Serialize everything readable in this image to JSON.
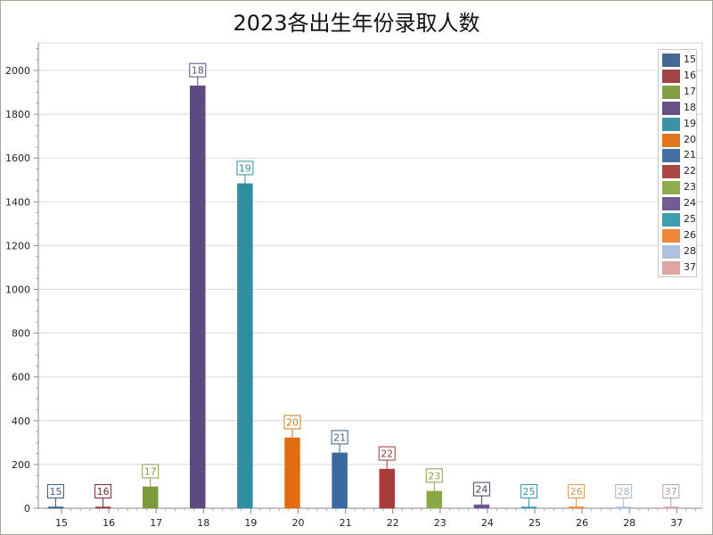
{
  "chart_data": {
    "type": "bar",
    "title": "2023各出生年份录取人数",
    "xlabel": "",
    "ylabel": "",
    "ylim": [
      0,
      2150
    ],
    "yticks": [
      0,
      200,
      400,
      600,
      800,
      1000,
      1200,
      1400,
      1600,
      1800,
      2000
    ],
    "grid": true,
    "legend_position": "right-top",
    "categories": [
      "15",
      "16",
      "17",
      "18",
      "19",
      "20",
      "21",
      "22",
      "23",
      "24",
      "25",
      "26",
      "28",
      "37"
    ],
    "values": [
      5,
      4,
      98,
      1930,
      1483,
      322,
      253,
      179,
      78,
      16,
      2,
      1,
      1,
      1
    ],
    "series": [
      {
        "name": "15",
        "values": [
          5
        ],
        "color": "#3a5f8f"
      },
      {
        "name": "16",
        "values": [
          4
        ],
        "color": "#9b3a3a"
      },
      {
        "name": "17",
        "values": [
          98
        ],
        "color": "#7b9a3a"
      },
      {
        "name": "18",
        "values": [
          1930
        ],
        "color": "#5e4a7e"
      },
      {
        "name": "19",
        "values": [
          1483
        ],
        "color": "#2f8ea0"
      },
      {
        "name": "20",
        "values": [
          322
        ],
        "color": "#e06e10"
      },
      {
        "name": "21",
        "values": [
          253
        ],
        "color": "#3b68a0"
      },
      {
        "name": "22",
        "values": [
          179
        ],
        "color": "#a83c3c"
      },
      {
        "name": "23",
        "values": [
          78
        ],
        "color": "#8aa844"
      },
      {
        "name": "24",
        "values": [
          16
        ],
        "color": "#6a5490"
      },
      {
        "name": "25",
        "values": [
          2
        ],
        "color": "#3499ac"
      },
      {
        "name": "26",
        "values": [
          1
        ],
        "color": "#ee8030"
      },
      {
        "name": "28",
        "values": [
          1
        ],
        "color": "#a8bfdf"
      },
      {
        "name": "37",
        "values": [
          1
        ],
        "color": "#e0a0a0"
      }
    ],
    "label_border_colors": [
      "#3a5f8f",
      "#7a2a2a",
      "#8a9a4a",
      "#5e4a7e",
      "#2f8ea0",
      "#c87a20",
      "#3b5f88",
      "#9a3a3a",
      "#8a9a4a",
      "#4a4060",
      "#3499ac",
      "#d49a50",
      "#a8b8c8",
      "#c0a0a0"
    ]
  }
}
